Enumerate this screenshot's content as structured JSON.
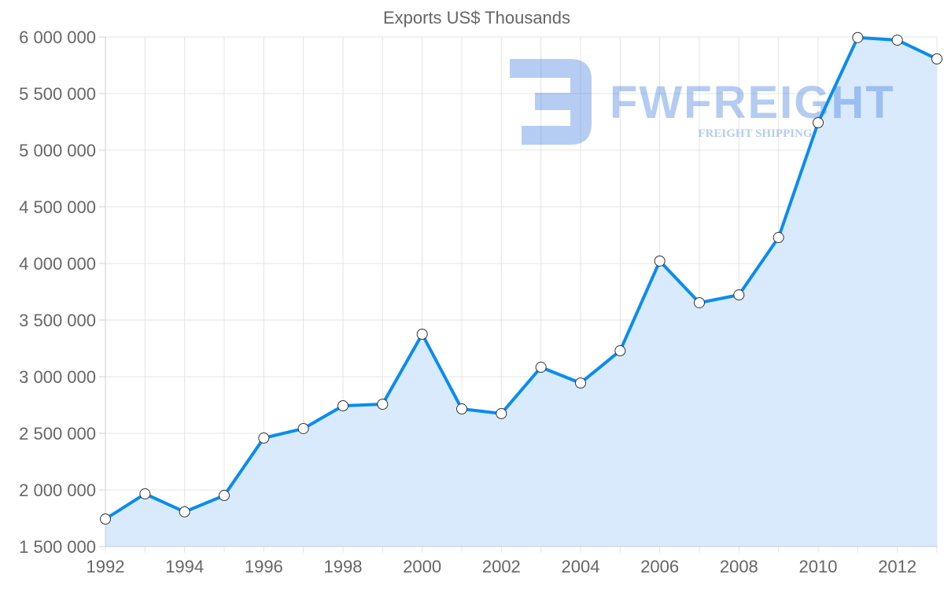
{
  "chart_data": {
    "type": "line",
    "title": "Exports US$ Thousands",
    "xlabel": "",
    "ylabel": "",
    "x": [
      1992,
      1993,
      1994,
      1995,
      1996,
      1997,
      1998,
      1999,
      2000,
      2001,
      2002,
      2003,
      2004,
      2005,
      2006,
      2007,
      2008,
      2009,
      2010,
      2011,
      2012,
      2013
    ],
    "series": [
      {
        "name": "Exports US$ Thousands",
        "values": [
          1743000,
          1965000,
          1806000,
          1951000,
          2458000,
          2542000,
          2743000,
          2757000,
          3375000,
          2715000,
          2674000,
          3083000,
          2944000,
          3229000,
          4021000,
          3653000,
          3722000,
          4229000,
          5243000,
          5995000,
          5972000,
          5806000
        ],
        "color": "#0a8cf0",
        "fill": "#d8eafc"
      }
    ],
    "xlim": [
      1992,
      2013
    ],
    "ylim": [
      1500000,
      6000000
    ],
    "x_ticks": [
      "1992",
      "1994",
      "1996",
      "1998",
      "2000",
      "2002",
      "2004",
      "2006",
      "2008",
      "2010",
      "2012"
    ],
    "y_ticks": [
      "1 500 000",
      "2 000 000",
      "2 500 000",
      "3 000 000",
      "3 500 000",
      "4 000 000",
      "4 500 000",
      "5 000 000",
      "5 500 000",
      "6 000 000"
    ],
    "grid": true,
    "legend": "none"
  },
  "watermark": {
    "brand": "FWFREIGHT",
    "tagline": "FREIGHT SHIPPING",
    "color": "#2f6fdc"
  }
}
